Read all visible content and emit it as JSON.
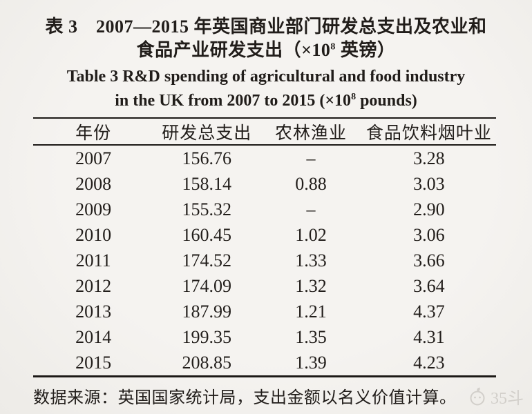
{
  "page": {
    "background": "#f2f0ec",
    "text_color": "#211d1a",
    "rule_color": "#1c1916"
  },
  "titles": {
    "zh_line1": "表 3　2007—2015 年英国商业部门研发总支出及农业和",
    "zh_line2_pre": "食品产业研发支出（×10",
    "zh_line2_sup": "8",
    "zh_line2_post": " 英镑）",
    "en_line1": "Table 3  R&D spending of agricultural and food industry",
    "en_line2_pre": "in the UK from 2007 to 2015 (×10",
    "en_line2_sup": "8",
    "en_line2_post": " pounds)"
  },
  "table": {
    "headers": [
      "年份",
      "研发总支出",
      "农林渔业",
      "食品饮料烟叶业"
    ],
    "rows": [
      [
        "2007",
        "156.76",
        "–",
        "3.28"
      ],
      [
        "2008",
        "158.14",
        "0.88",
        "3.03"
      ],
      [
        "2009",
        "155.32",
        "–",
        "2.90"
      ],
      [
        "2010",
        "160.45",
        "1.02",
        "3.06"
      ],
      [
        "2011",
        "174.52",
        "1.33",
        "3.66"
      ],
      [
        "2012",
        "174.09",
        "1.32",
        "3.64"
      ],
      [
        "2013",
        "187.99",
        "1.21",
        "4.37"
      ],
      [
        "2014",
        "199.35",
        "1.35",
        "4.31"
      ],
      [
        "2015",
        "208.85",
        "1.39",
        "4.23"
      ]
    ]
  },
  "footer": {
    "source_note": "数据来源：英国国家统计局，支出金额以名义价值计算。"
  },
  "watermark": {
    "text": "35斗",
    "color": "#d2cfca"
  }
}
